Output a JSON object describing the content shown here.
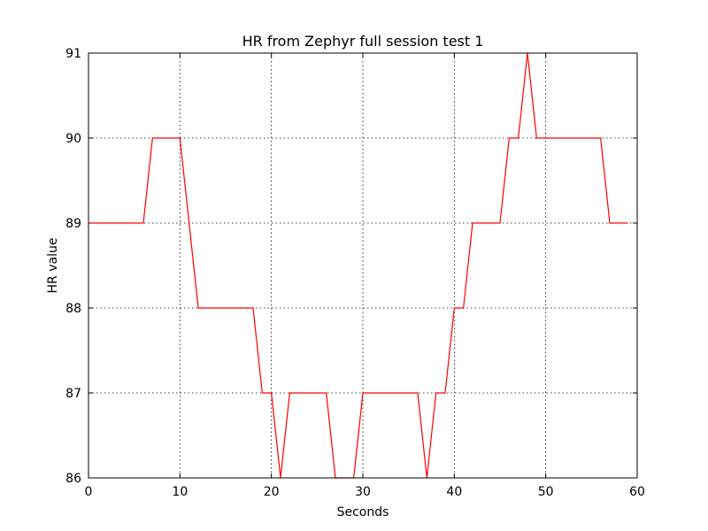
{
  "chart_data": {
    "type": "line",
    "title": "HR from Zephyr full session test 1",
    "xlabel": "Seconds",
    "ylabel": "HR value",
    "xlim": [
      0,
      60
    ],
    "ylim": [
      86,
      91
    ],
    "xticks": [
      "0",
      "10",
      "20",
      "30",
      "40",
      "50",
      "60"
    ],
    "yticks": [
      "86",
      "87",
      "88",
      "89",
      "90",
      "91"
    ],
    "grid": true,
    "line_color": "#ff0000",
    "series": [
      {
        "x": [
          0,
          1,
          2,
          3,
          4,
          5,
          6,
          7,
          8,
          9,
          10,
          11,
          12,
          13,
          14,
          15,
          16,
          17,
          18,
          19,
          20,
          21,
          22,
          23,
          24,
          25,
          26,
          27,
          28,
          29,
          30,
          31,
          32,
          33,
          34,
          35,
          36,
          37,
          38,
          39,
          40,
          41,
          42,
          43,
          44,
          45,
          46,
          47,
          48,
          49,
          50,
          51,
          52,
          53,
          54,
          55,
          56,
          57,
          58,
          59
        ],
        "values": [
          89,
          89,
          89,
          89,
          89,
          89,
          89,
          90,
          90,
          90,
          90,
          89,
          88,
          88,
          88,
          88,
          88,
          88,
          88,
          87,
          87,
          86,
          87,
          87,
          87,
          87,
          87,
          86,
          86,
          86,
          87,
          87,
          87,
          87,
          87,
          87,
          87,
          86,
          87,
          87,
          88,
          88,
          89,
          89,
          89,
          89,
          90,
          90,
          91,
          90,
          90,
          90,
          90,
          90,
          90,
          90,
          90,
          89,
          89,
          89
        ]
      }
    ]
  }
}
